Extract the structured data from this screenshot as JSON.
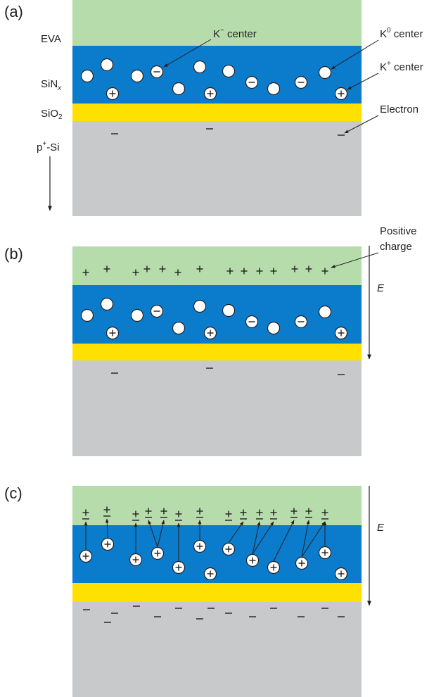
{
  "panels": [
    {
      "label": "(a)"
    },
    {
      "label": "(b)"
    },
    {
      "label": "(c)"
    }
  ],
  "layers": {
    "eva": "EVA",
    "sinx": {
      "base": "SiN",
      "sub": "x"
    },
    "sio2": {
      "base": "SiO",
      "sub": "2"
    },
    "psi": {
      "base": "p",
      "sup": "+",
      "rest": "-Si"
    }
  },
  "callouts": {
    "k_minus": {
      "base": "K",
      "sup": "−",
      "rest": " center"
    },
    "k_zero": {
      "base": "K",
      "sup": "0",
      "rest": " center"
    },
    "k_plus": {
      "base": "K",
      "sup": "+",
      "rest": " center"
    },
    "electron": "Electron",
    "positive_charge": [
      "Positive",
      "charge"
    ]
  },
  "field": [
    "E",
    "E"
  ]
}
